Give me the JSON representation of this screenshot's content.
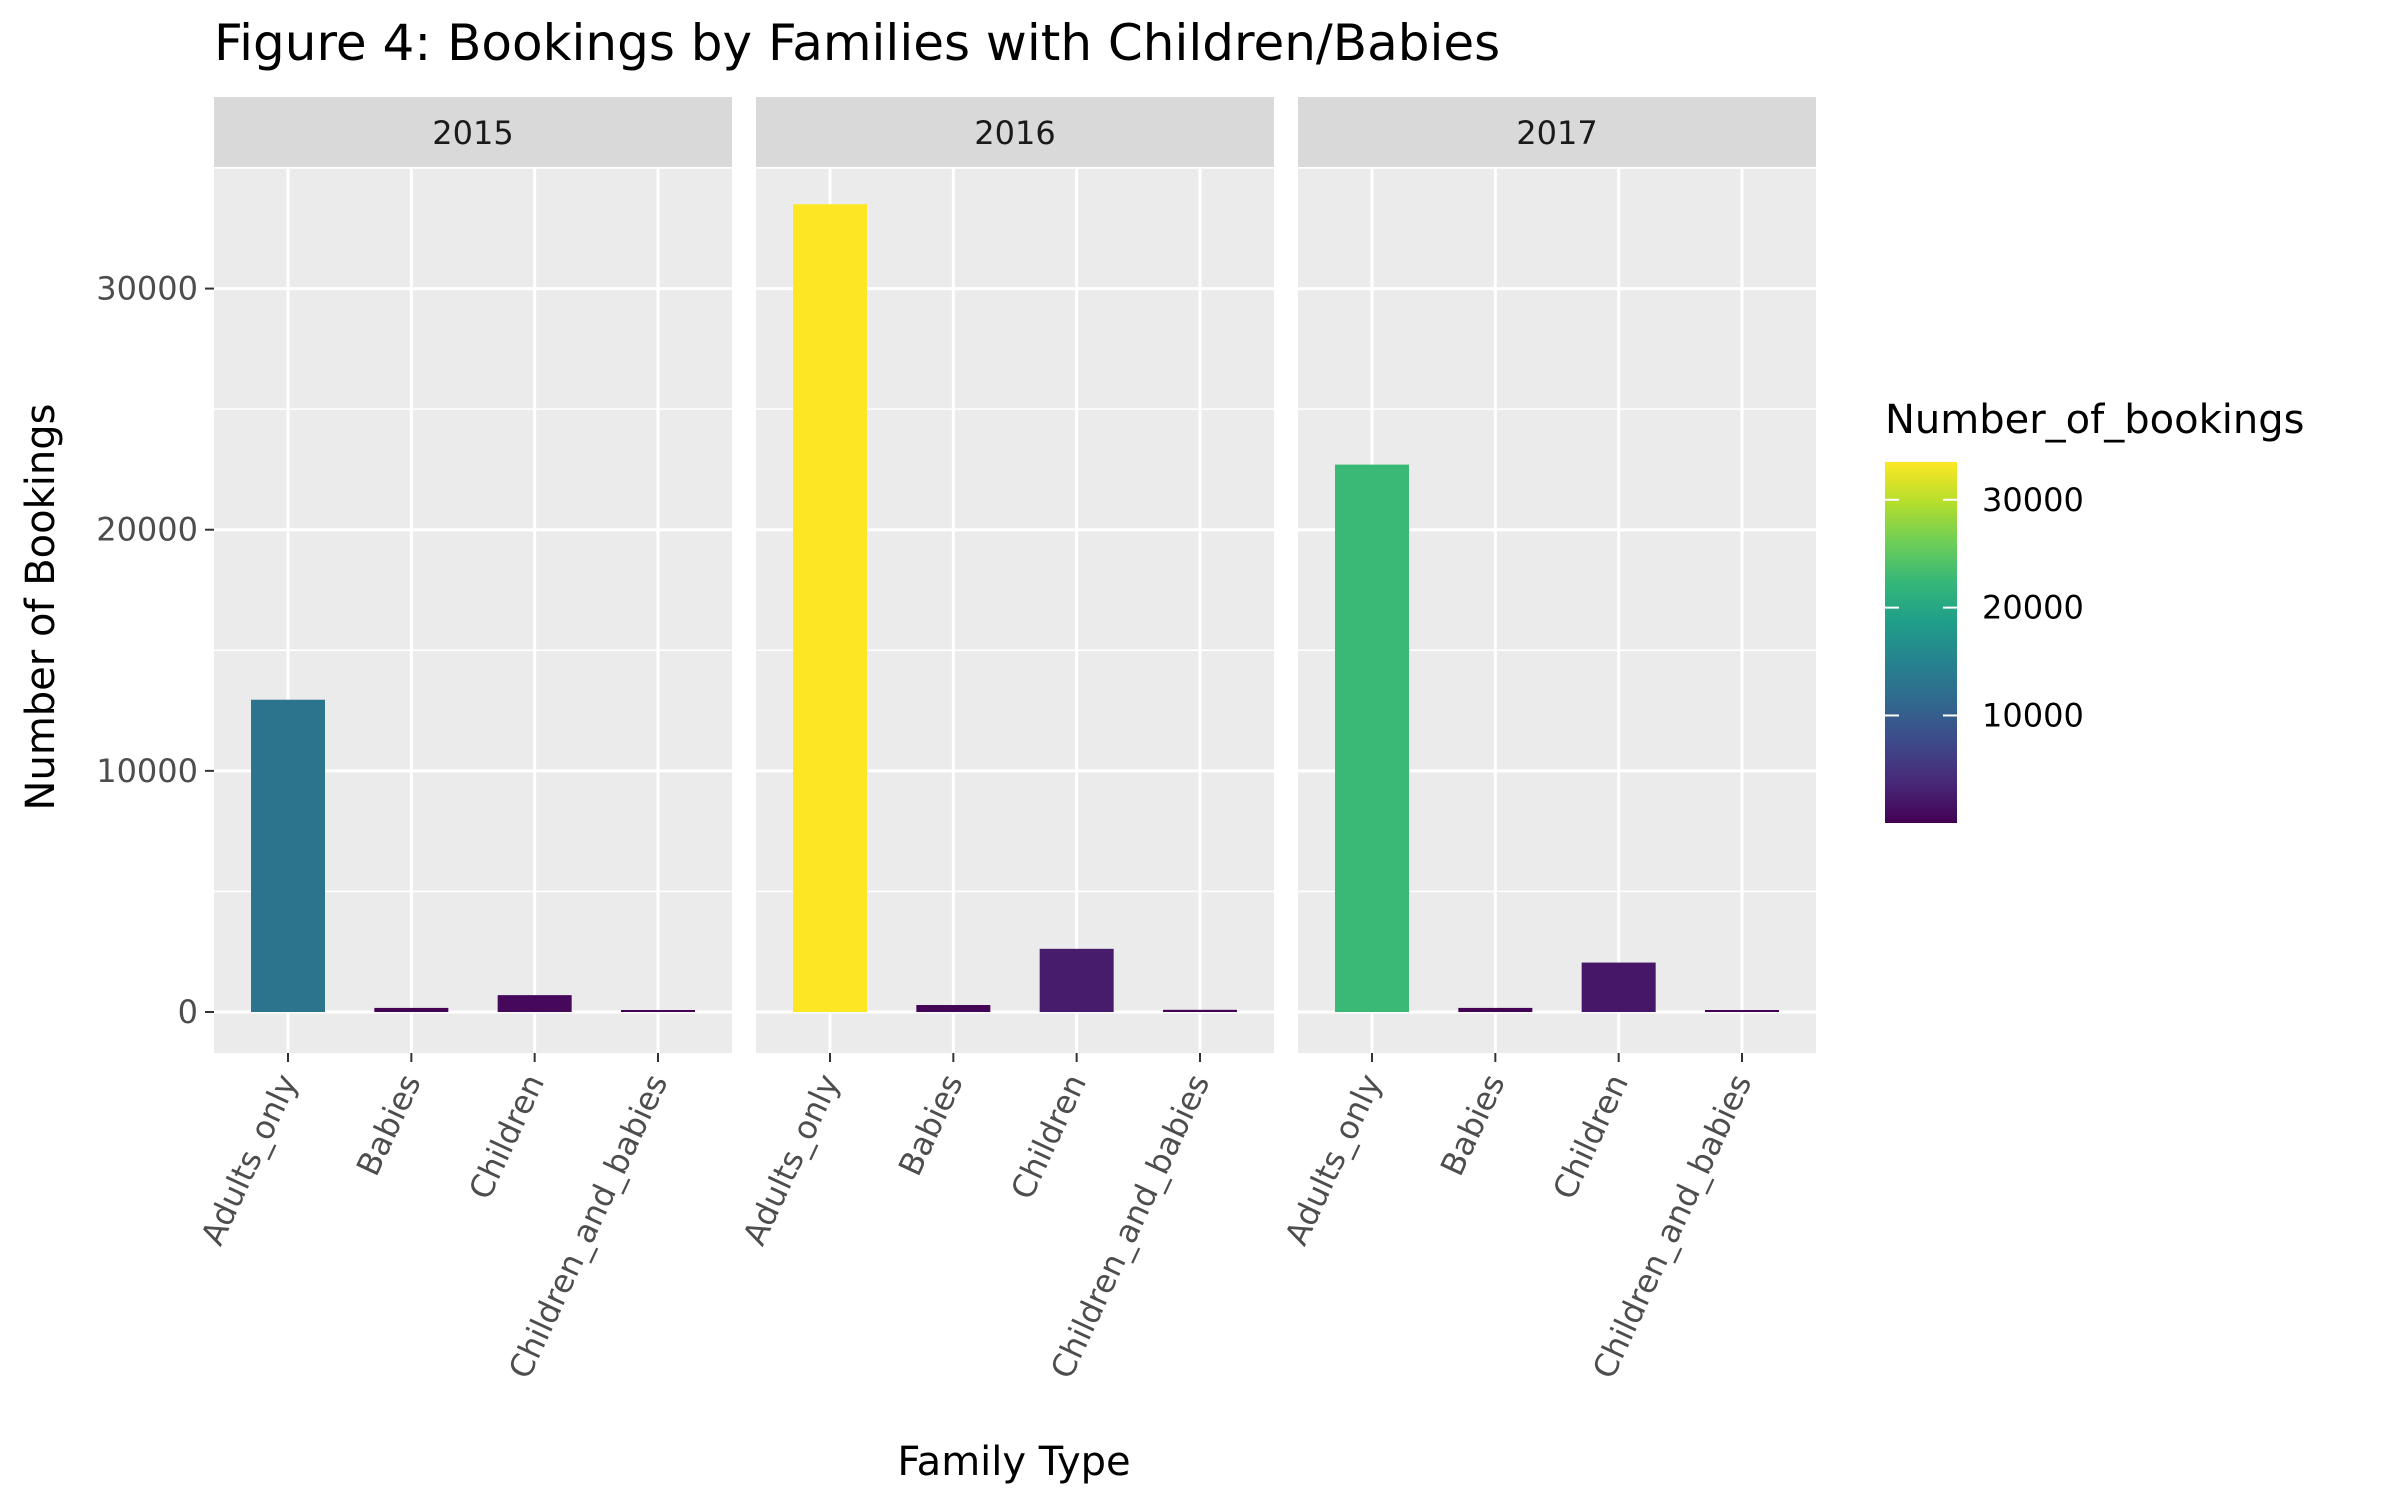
{
  "chart_data": {
    "type": "bar",
    "title": "Figure 4: Bookings by Families with Children/Babies",
    "xlabel": "Family Type",
    "ylabel": "Number of Bookings",
    "categories": [
      "Adults_only",
      "Babies",
      "Children",
      "Children_and_babies"
    ],
    "ylim": [
      -1700,
      35000
    ],
    "y_ticks": [
      0,
      10000,
      20000,
      30000
    ],
    "grid": true,
    "facets": [
      {
        "name": "2015",
        "values": [
          12950,
          170,
          700,
          30
        ]
      },
      {
        "name": "2016",
        "values": [
          33500,
          290,
          2620,
          90
        ]
      },
      {
        "name": "2017",
        "values": [
          22700,
          170,
          2050,
          40
        ]
      }
    ],
    "legend": {
      "title": "Number_of_bookings",
      "type": "colorbar",
      "palette": "viridis",
      "range": [
        30,
        33500
      ],
      "ticks": [
        10000,
        20000,
        30000
      ],
      "placement": "right"
    },
    "colors": {
      "panel_background": "#ebebeb",
      "grid": "#ffffff",
      "strip_background": "#d9d9d9"
    }
  }
}
